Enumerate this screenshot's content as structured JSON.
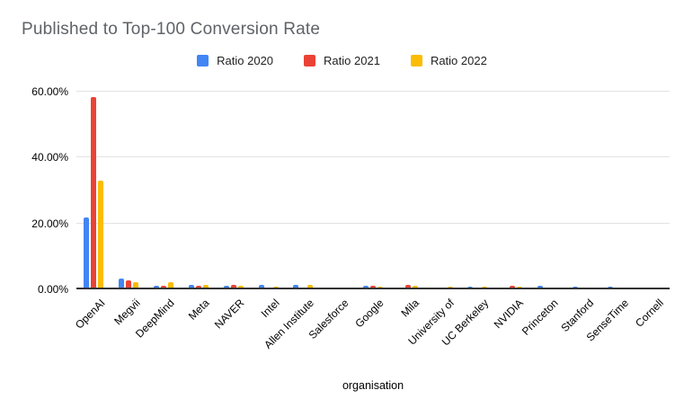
{
  "header": {
    "title": "Published to Top-100 Conversion Rate"
  },
  "chart_data": {
    "type": "bar",
    "title": "Published to Top-100 Conversion Rate",
    "xlabel": "organisation",
    "ylabel": "",
    "ylim": [
      0,
      60
    ],
    "y_tick_values": [
      0,
      20,
      40,
      60
    ],
    "y_tick_labels": [
      "0.00%",
      "20.00%",
      "40.00%",
      "60.00%"
    ],
    "grid": true,
    "legend_position": "top",
    "value_unit": "percent",
    "categories": [
      "OpenAI",
      "Megvii",
      "DeepMind",
      "Meta",
      "NAVER",
      "Intel",
      "Allen Institute",
      "Salesforce",
      "Google",
      "Mila",
      "University of",
      "UC Berkeley",
      "NVIDIA",
      "Princeton",
      "Stanford",
      "SenseTime",
      "Cornell"
    ],
    "series": [
      {
        "name": "Ratio 2020",
        "color": "#4285F4",
        "values": [
          21.6,
          3.0,
          0.8,
          1.1,
          0.9,
          1.2,
          1.0,
          0.4,
          0.7,
          0.1,
          0.4,
          0.5,
          0.1,
          0.9,
          0.45,
          0.65,
          0.05
        ]
      },
      {
        "name": "Ratio 2021",
        "color": "#EA4335",
        "values": [
          58.0,
          2.5,
          0.8,
          0.8,
          1.2,
          0.4,
          0.1,
          0.4,
          0.7,
          1.0,
          0.2,
          0.4,
          0.7,
          0.05,
          0.05,
          0.35,
          0.05
        ]
      },
      {
        "name": "Ratio 2022",
        "color": "#FBBC04",
        "values": [
          32.7,
          2.0,
          1.8,
          1.1,
          0.9,
          0.6,
          1.0,
          0.1,
          0.6,
          0.9,
          0.6,
          0.45,
          0.6,
          0.05,
          0.4,
          0.05,
          0.4
        ]
      }
    ]
  },
  "colors": {
    "title_gray": "#5f6368",
    "gridline": "#e3e3e3",
    "axis": "#333333"
  }
}
